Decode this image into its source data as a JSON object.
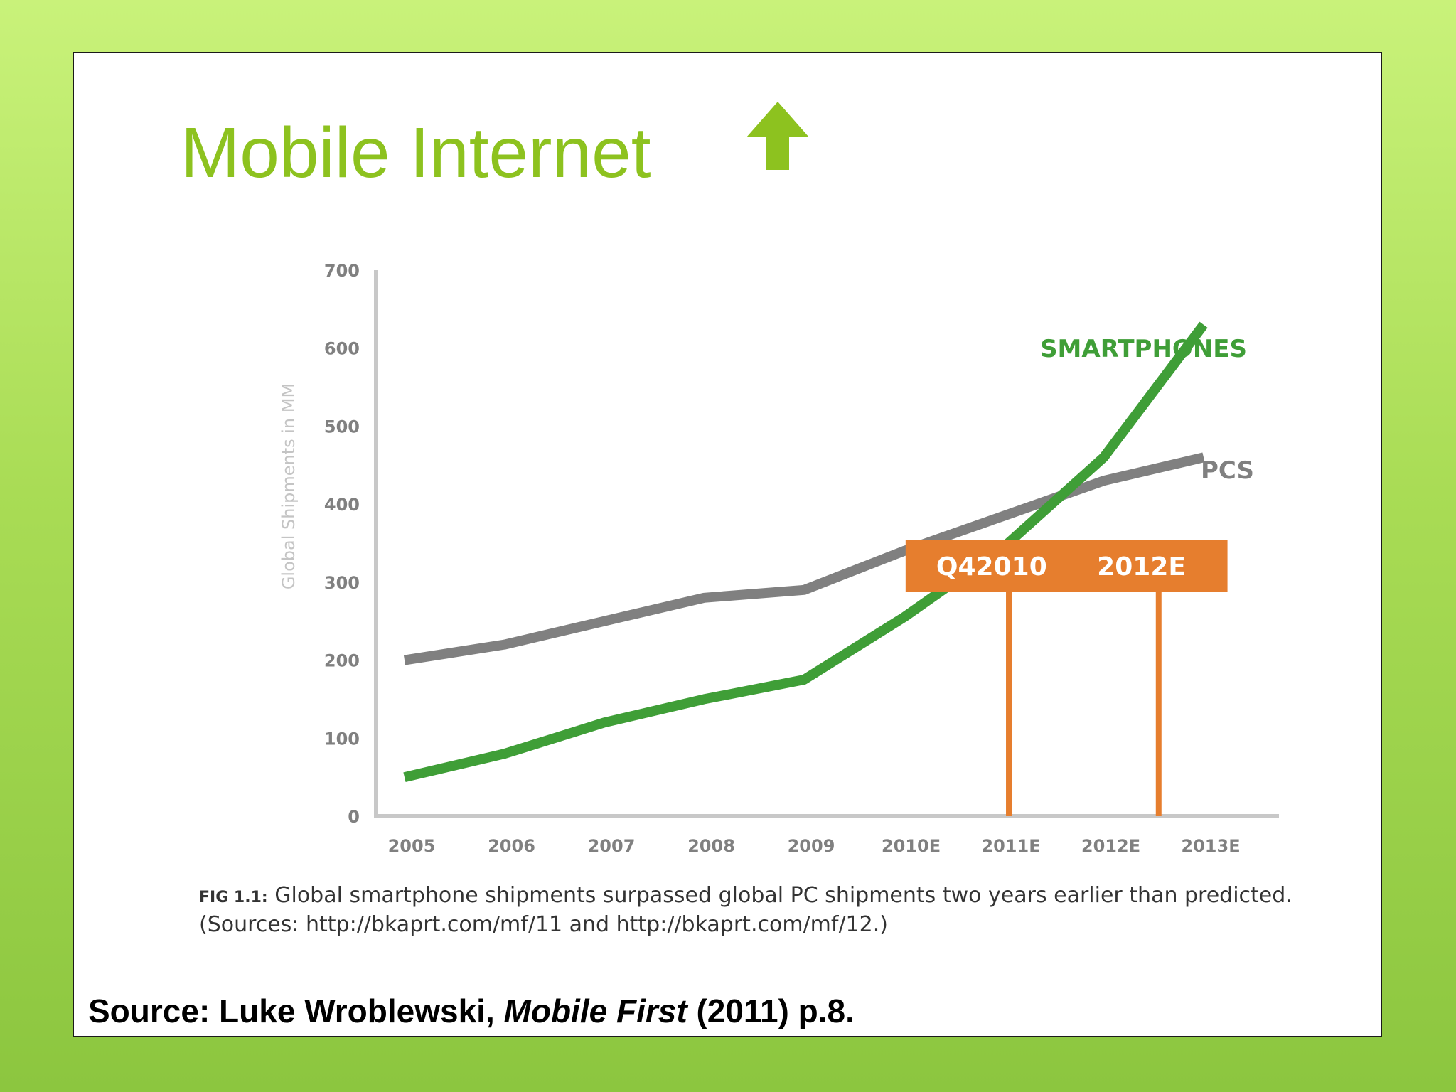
{
  "slide": {
    "title": "Mobile Internet",
    "title_icon": "arrow-up-icon",
    "title_color": "#8dc21f"
  },
  "caption": {
    "fig_label": "FIG 1.1:",
    "text": "Global smartphone shipments surpassed global PC shipments two years earlier than predicted. (Sources: http://bkaprt.com/mf/11 and http://bkaprt.com/mf/12.)"
  },
  "source": {
    "prefix": "Source: Luke Wroblewski,",
    "book": "Mobile First",
    "suffix": "(2011)  p.8."
  },
  "chart_data": {
    "type": "line",
    "title": "",
    "ylabel": "Global Shipments in MM",
    "xlabel": "",
    "categories": [
      "2005",
      "2006",
      "2007",
      "2008",
      "2009",
      "2010E",
      "2011E",
      "2012E",
      "2013E"
    ],
    "yticks": [
      "0",
      "100",
      "200",
      "300",
      "400",
      "500",
      "600",
      "700"
    ],
    "ylim": [
      0,
      700
    ],
    "grid": false,
    "series": [
      {
        "name": "PCS",
        "color": "#808080",
        "values": [
          200,
          220,
          250,
          280,
          290,
          340,
          385,
          430,
          460
        ]
      },
      {
        "name": "SMARTPHONES",
        "color": "#3f9e37",
        "values": [
          50,
          80,
          120,
          150,
          175,
          255,
          345,
          460,
          630
        ]
      }
    ],
    "annotations": [
      {
        "label": "Q42010",
        "x": 6.05,
        "color": "#e67e2e"
      },
      {
        "label": "2012E",
        "x": 7.55,
        "color": "#e67e2e"
      }
    ]
  }
}
